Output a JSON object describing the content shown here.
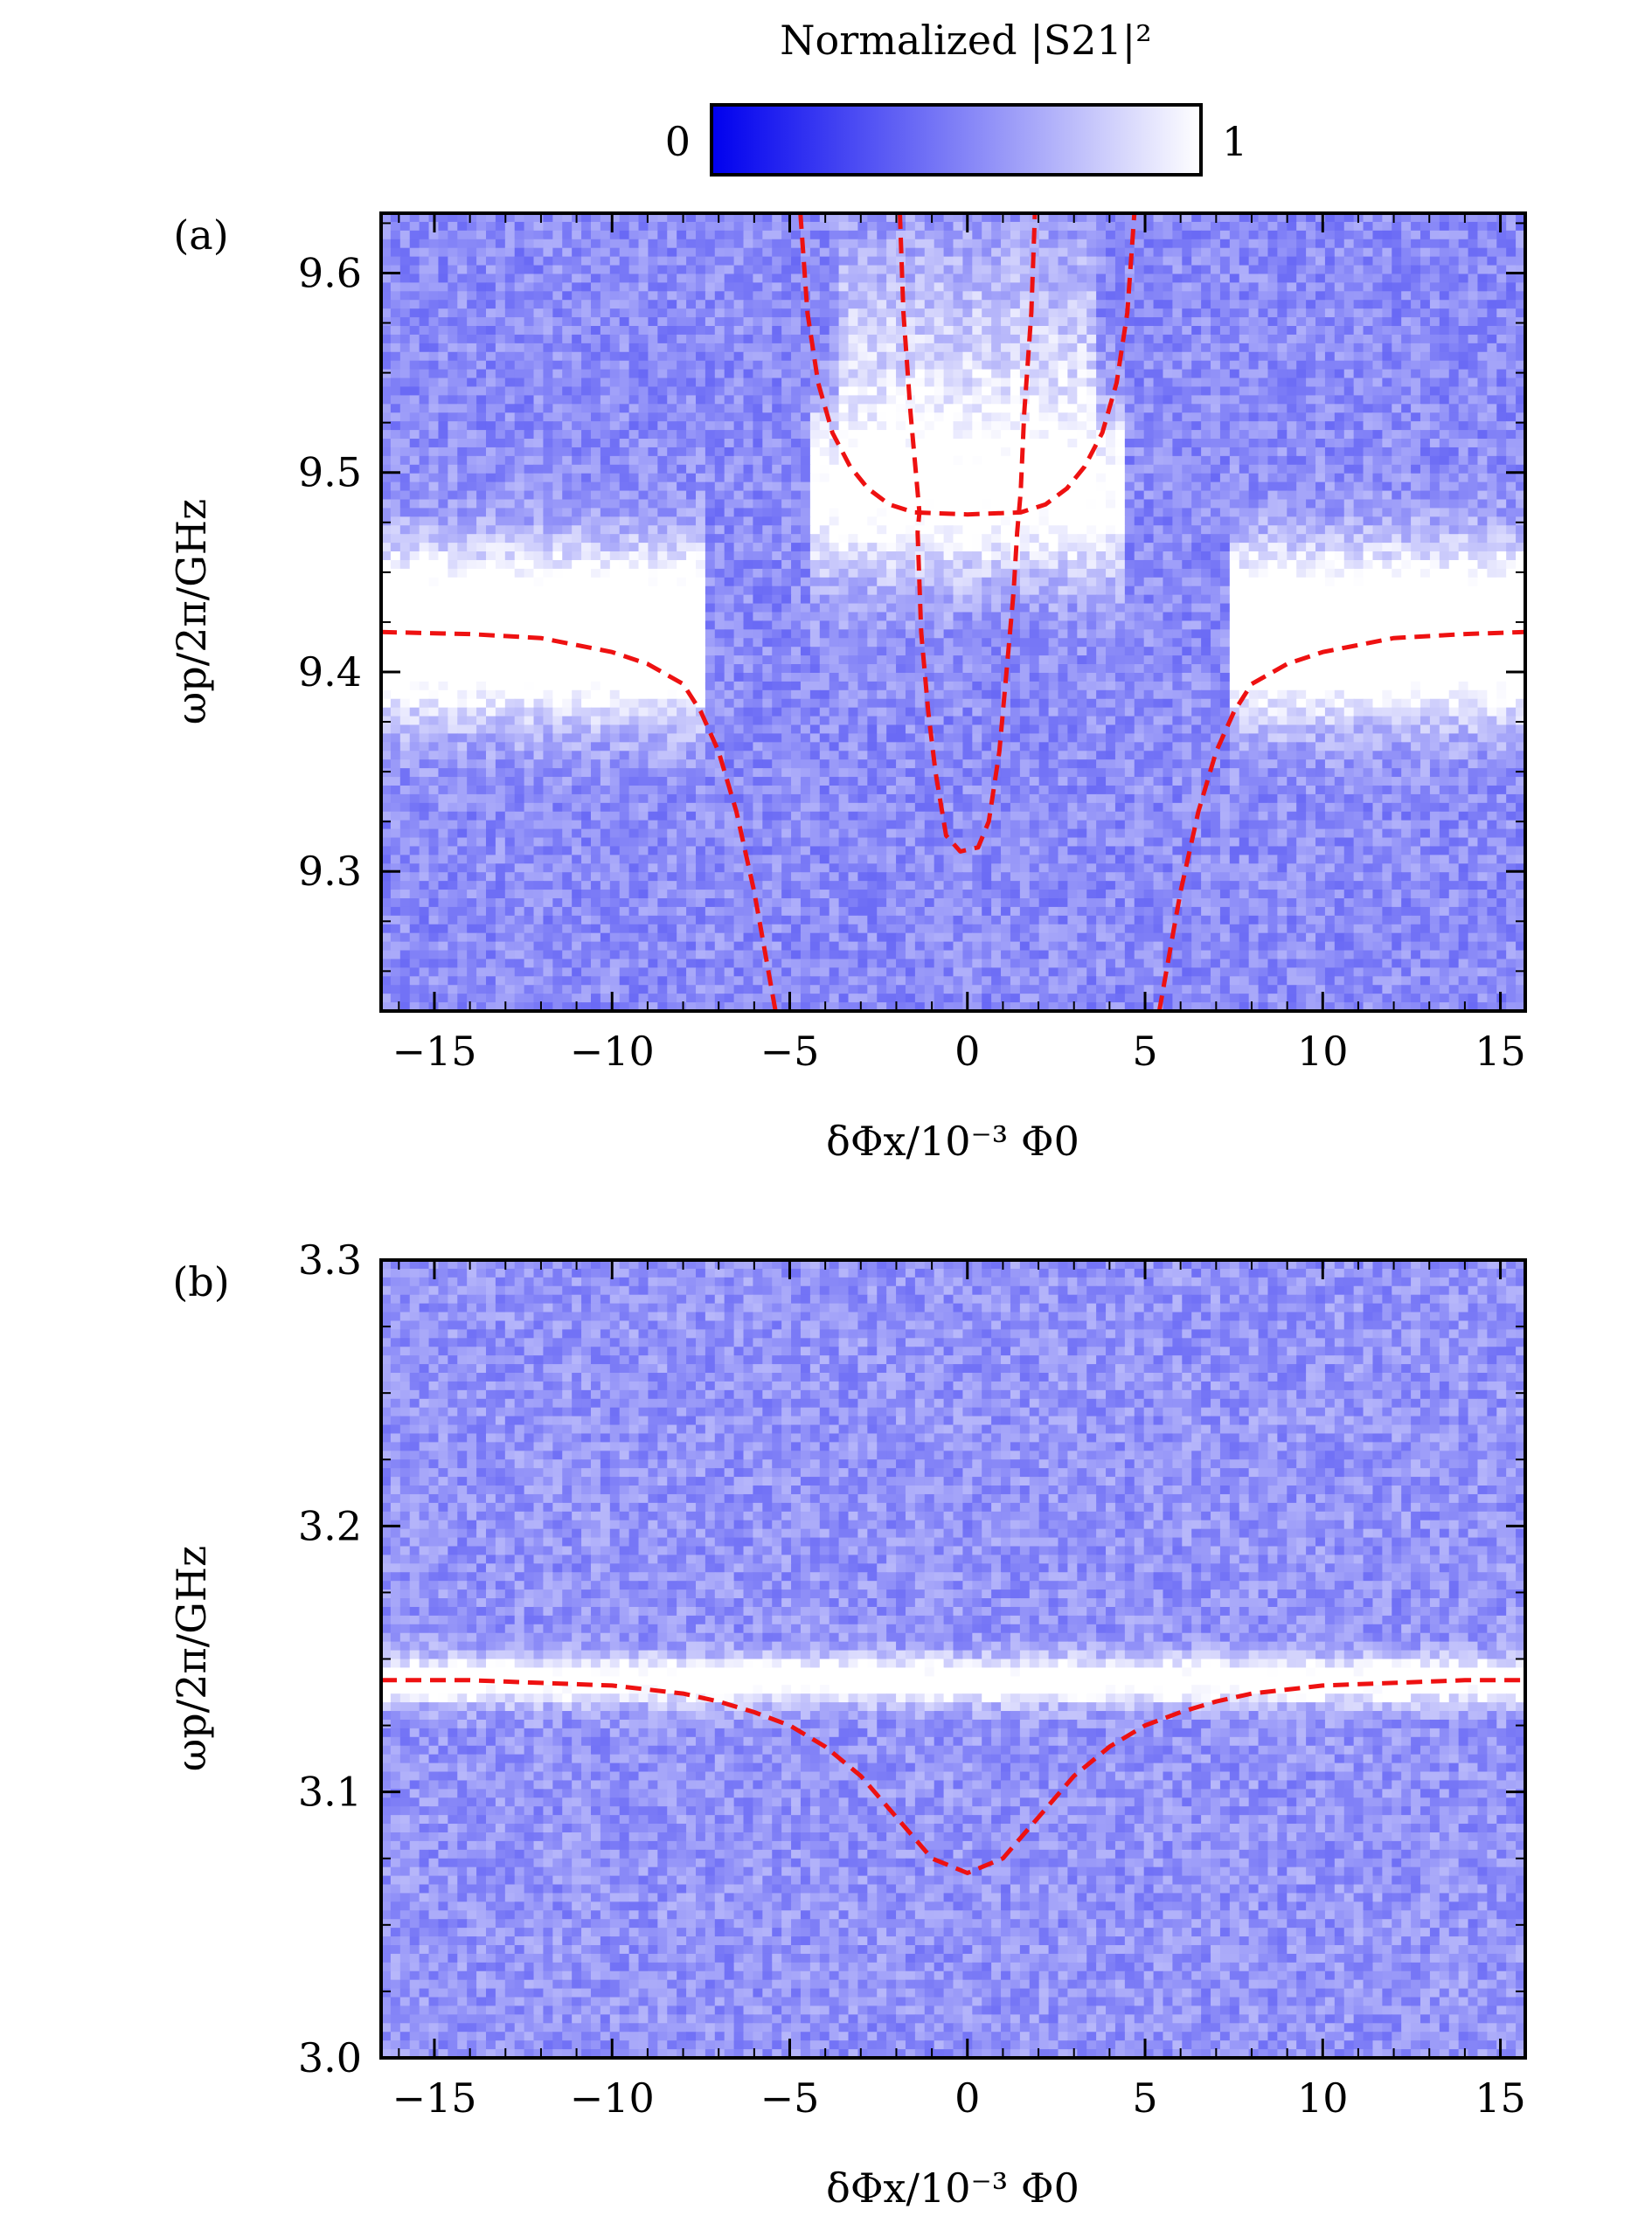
{
  "colorbar": {
    "title": "Normalized |S21|²",
    "min_label": "0",
    "max_label": "1",
    "low_color": "#0000ee",
    "high_color": "#ffffff"
  },
  "chart_data": [
    {
      "type": "heatmap",
      "panel_label": "(a)",
      "xlabel": "δΦx/10⁻³ Φ0",
      "ylabel": "ωp/2π/GHz",
      "xlim": [
        -16.5,
        15.7
      ],
      "ylim": [
        9.23,
        9.63
      ],
      "xticks": [
        -15,
        -10,
        -5,
        0,
        5,
        10,
        15
      ],
      "xtick_labels": [
        "−15",
        "−10",
        "−5",
        "0",
        "5",
        "10",
        "15"
      ],
      "yticks": [
        9.3,
        9.4,
        9.5,
        9.6
      ],
      "ytick_labels": [
        "9.3",
        "9.4",
        "9.5",
        "9.6"
      ],
      "background_level": 0.55,
      "fit_line_color": "#ee1111",
      "series": [
        {
          "x": [
            -16.5,
            -14,
            -12,
            -10,
            -9,
            -8,
            -7.5,
            -7,
            -6.5,
            -6,
            -5.8,
            -5.6,
            -5.4
          ],
          "y": [
            9.42,
            9.419,
            9.417,
            9.41,
            9.404,
            9.394,
            9.38,
            9.36,
            9.33,
            9.29,
            9.27,
            9.25,
            9.23
          ]
        },
        {
          "x": [
            5.4,
            5.6,
            5.8,
            6,
            6.5,
            7,
            7.5,
            8,
            9,
            10,
            12,
            14,
            15.7
          ],
          "y": [
            9.23,
            9.25,
            9.27,
            9.29,
            9.33,
            9.36,
            9.38,
            9.394,
            9.404,
            9.41,
            9.417,
            9.419,
            9.42
          ]
        },
        {
          "x": [
            -4.7,
            -4.5,
            -4.2,
            -3.8,
            -3.3,
            -2.8,
            -2.2,
            -1.5,
            0,
            1.5,
            2.2,
            2.8,
            3.3,
            3.8,
            4.2,
            4.5,
            4.7
          ],
          "y": [
            9.63,
            9.58,
            9.545,
            9.52,
            9.503,
            9.492,
            9.484,
            9.48,
            9.479,
            9.48,
            9.484,
            9.492,
            9.503,
            9.52,
            9.545,
            9.58,
            9.63
          ]
        },
        {
          "x": [
            -1.9,
            -1.8,
            -1.6,
            -1.35,
            -1.4,
            -1.3,
            -1.1,
            -0.9,
            -0.6,
            -0.2,
            0.3,
            0.6,
            0.9,
            1.1,
            1.3,
            1.4,
            1.5,
            1.6,
            1.8,
            1.9
          ],
          "y": [
            9.63,
            9.58,
            9.53,
            9.48,
            9.47,
            9.42,
            9.38,
            9.35,
            9.318,
            9.31,
            9.312,
            9.325,
            9.36,
            9.4,
            9.44,
            9.47,
            9.49,
            9.53,
            9.58,
            9.63
          ]
        }
      ],
      "bright_bands": [
        {
          "type": "level",
          "x1": -16.5,
          "x2": -7.5,
          "y": 9.42,
          "sigma": 0.028,
          "strength": 0.85
        },
        {
          "type": "level",
          "x1": 7.5,
          "x2": 15.7,
          "y": 9.42,
          "sigma": 0.028,
          "strength": 0.85
        },
        {
          "type": "level",
          "x1": -4.5,
          "x2": 4.5,
          "y": 9.49,
          "sigma": 0.03,
          "strength": 0.55
        },
        {
          "type": "level",
          "x1": -3.5,
          "x2": 3.5,
          "y": 9.56,
          "sigma": 0.04,
          "strength": 0.25
        }
      ]
    },
    {
      "type": "heatmap",
      "panel_label": "(b)",
      "xlabel": "δΦx/10⁻³ Φ0",
      "ylabel": "ωp/2π/GHz",
      "xlim": [
        -16.5,
        15.7
      ],
      "ylim": [
        3.0,
        3.3
      ],
      "xticks": [
        -15,
        -10,
        -5,
        0,
        5,
        10,
        15
      ],
      "xtick_labels": [
        "−15",
        "−10",
        "−5",
        "0",
        "5",
        "10",
        "15"
      ],
      "yticks": [
        3.0,
        3.1,
        3.2,
        3.3
      ],
      "ytick_labels": [
        "3.0",
        "3.1",
        "3.2",
        "3.3"
      ],
      "background_level": 0.58,
      "fit_line_color": "#ee1111",
      "series": [
        {
          "x": [
            -16.5,
            -14,
            -12,
            -10,
            -8,
            -7,
            -6,
            -5,
            -4,
            -3,
            -2,
            -1,
            0,
            1,
            2,
            3,
            4,
            5,
            6,
            7,
            8,
            10,
            12,
            14,
            15.7
          ],
          "y": [
            3.142,
            3.142,
            3.141,
            3.14,
            3.137,
            3.134,
            3.13,
            3.125,
            3.117,
            3.106,
            3.0905,
            3.075,
            3.0695,
            3.075,
            3.0905,
            3.106,
            3.117,
            3.125,
            3.13,
            3.134,
            3.137,
            3.14,
            3.141,
            3.142,
            3.142
          ]
        }
      ],
      "bright_bands": [
        {
          "type": "level",
          "x1": -16.5,
          "x2": 15.7,
          "y": 3.142,
          "sigma": 0.006,
          "strength": 0.6
        }
      ]
    }
  ]
}
